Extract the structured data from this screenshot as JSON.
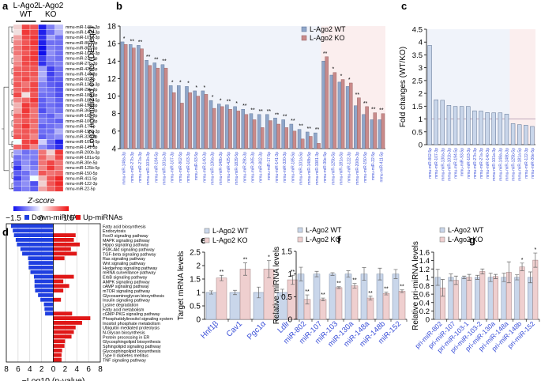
{
  "panels": {
    "a": "a",
    "b": "b",
    "c": "c",
    "d": "d",
    "e": "e",
    "f": "f",
    "g": "g"
  },
  "colors": {
    "wt_bar_b": "#8fa6c9",
    "ko_bar_b": "#c98a8a",
    "wt_bar_light": "#c9d6ea",
    "ko_bar_light": "#efcfcf",
    "down_blue": "#1f3fe0",
    "up_red": "#e01818",
    "label_blue": "#3a4fd8",
    "bg_blue": "#f0f3fa",
    "bg_red": "#fbeeee"
  },
  "chart_data": [
    {
      "id": "a",
      "type": "heatmap",
      "group_labels": [
        "L-Ago2\nWT",
        "L-Ago2\nKO"
      ],
      "group_label_lines": [
        [
          "L-Ago2",
          "WT"
        ],
        [
          "L-Ago2",
          "KO"
        ]
      ],
      "rows": [
        "mmu-miR-148a-3p",
        "mmu-miR-148b-3p",
        "mmu-miR-101a-3p",
        "mmu-miR-802-3p",
        "mmu-miR-802-5p",
        "mmu-miR-101b-3p",
        "mmu-miR-27a-3p",
        "mmu-miR-27b-3p",
        "mmu-miR-425-5p",
        "mmu-miR-140-3p",
        "mmu-miR-93-5p",
        "mmu-miR-130a-3p",
        "mmu-miR-29b-3p",
        "mmu-miR-185-5p",
        "mmu-miR-1839-5p",
        "mmu-miR-194-5p",
        "mmu-miR-365-3p",
        "mmu-miR-103-3p",
        "mmu-miR-107-3p",
        "mmu-miR-17-5p",
        "mmu-miR-1981-3p",
        "mmu-miR-320-3p",
        "mmu-miR-101a-5p",
        "mmu-miR-141-3p",
        "mmu-miR-200b-3p",
        "mmu-miR-181a-5p",
        "mmu-miR-30e-5p",
        "mmu-miR-125b-5p",
        "mmu-miR-150-5p",
        "mmu-miR-411-5p",
        "mmu-miR-122-3p",
        "mmu-miR-22-5p"
      ],
      "values": [
        [
          0.3,
          1.2,
          1.1,
          -1.4,
          -0.8,
          -0.4
        ],
        [
          0.2,
          1.3,
          1.2,
          -1.4,
          -0.9,
          -0.5
        ],
        [
          0.6,
          1.2,
          1.3,
          -1.3,
          -0.6,
          -0.9
        ],
        [
          0.8,
          1.1,
          1.3,
          -1.4,
          -0.9,
          -0.9
        ],
        [
          0.9,
          1.2,
          1.2,
          -1.5,
          -0.8,
          -0.9
        ],
        [
          0.9,
          1.1,
          1.3,
          -1.5,
          -0.7,
          -0.9
        ],
        [
          0.7,
          1.2,
          1.3,
          -1.2,
          -0.8,
          -0.9
        ],
        [
          0.8,
          1.2,
          1.2,
          -1.3,
          -0.9,
          -0.8
        ],
        [
          1.0,
          1.1,
          1.1,
          -0.6,
          -1.2,
          -0.9
        ],
        [
          1.1,
          1.1,
          1.1,
          -0.5,
          -1.2,
          -0.9
        ],
        [
          1.0,
          1.2,
          1.0,
          -0.6,
          -1.1,
          -1.0
        ],
        [
          1.1,
          0.9,
          1.2,
          -0.8,
          -1.0,
          -1.1
        ],
        [
          1.0,
          1.1,
          1.2,
          -0.8,
          -0.9,
          -1.1
        ],
        [
          1.2,
          0.2,
          1.1,
          -0.9,
          -0.9,
          -1.1
        ],
        [
          0.8,
          1.0,
          1.3,
          -1.0,
          -0.8,
          -1.0
        ],
        [
          0.5,
          1.3,
          1.1,
          -1.0,
          -0.9,
          -1.0
        ],
        [
          0.6,
          1.3,
          0.9,
          -1.1,
          -0.8,
          -0.9
        ],
        [
          1.0,
          1.2,
          0.9,
          -0.9,
          -1.0,
          -0.7
        ],
        [
          0.9,
          1.1,
          1.0,
          -0.8,
          -0.9,
          -1.0
        ],
        [
          1.0,
          1.3,
          0.9,
          -1.0,
          -0.9,
          -0.8
        ],
        [
          1.0,
          1.1,
          1.0,
          -0.9,
          -0.9,
          -0.5
        ],
        [
          1.1,
          1.1,
          0.8,
          -1.0,
          -0.8,
          -0.7
        ],
        [
          0.0,
          1.2,
          1.3,
          -0.3,
          -0.9,
          -1.4
        ],
        [
          1.0,
          1.2,
          0.8,
          -0.7,
          -1.0,
          -1.3
        ],
        [
          -0.6,
          -0.9,
          -0.8,
          0.9,
          0.3,
          1.3
        ],
        [
          -0.9,
          -0.8,
          -0.8,
          1.0,
          0.6,
          1.2
        ],
        [
          -1.0,
          -0.7,
          -0.9,
          0.9,
          1.2,
          0.9
        ],
        [
          -1.3,
          -0.6,
          -0.8,
          0.8,
          1.3,
          0.9
        ],
        [
          -1.0,
          -0.9,
          -0.6,
          1.1,
          0.9,
          1.0
        ],
        [
          -1.2,
          -0.8,
          0.0,
          0.5,
          1.1,
          1.4
        ],
        [
          -0.9,
          -0.7,
          -1.1,
          0.3,
          1.1,
          1.4
        ],
        [
          -1.0,
          -0.8,
          -1.0,
          0.6,
          1.0,
          1.3
        ]
      ],
      "legend_title": "Z-score",
      "legend_ticks": [
        "−1.5",
        "0",
        "1.5"
      ],
      "range": [
        -1.5,
        1.5
      ]
    },
    {
      "id": "b",
      "type": "bar",
      "ylabel": "Log2 normalized counts (DESeq2)",
      "ylim": [
        4,
        18
      ],
      "yticks": [
        4,
        6,
        8,
        10,
        12,
        14,
        16,
        18
      ],
      "legend": [
        "L-Ago2 WT",
        "L-Ago2 KO"
      ],
      "legend_position": "top-right",
      "categories": [
        "mmu-miR-148a-3p",
        "mmu-miR-27b-3p",
        "mmu-miR-27a-3p",
        "mmu-miR-101b-3p",
        "mmu-miR-194-5p",
        "mmu-miR-101a-3p",
        "mmu-miR-107-3p",
        "mmu-miR-802-5p",
        "mmu-miR-103-3p",
        "mmu-miR-93-5p",
        "mmu-miR-140-3p",
        "mmu-miR-130a-3p",
        "mmu-miR-148b-3p",
        "mmu-miR-425-5p",
        "mmu-miR-1839-5p",
        "mmu-miR-29b-3p",
        "mmu-miR-365-3p",
        "mmu-miR-802-3p",
        "mmu-miR-17-5p",
        "mmu-miR-141-3p",
        "mmu-miR-320-3p",
        "mmu-miR-185-5p",
        "mmu-miR-101a-5p",
        "mmu-miR-148b-5p",
        "mmu-miR-1981-3p",
        "mmu-miR-30e-5p",
        "mmu-miR-125b-5p",
        "mmu-miR-181a-5p",
        "mmu-miR-122-3p",
        "mmu-miR-200b-3p",
        "mmu-miR-150-5p",
        "mmu-miR-22-5p",
        "mmu-miR-411-5p"
      ],
      "series": [
        {
          "name": "L-Ago2 WT",
          "values": [
            16.2,
            15.9,
            15.8,
            14.1,
            13.8,
            13.6,
            11.2,
            11.2,
            11.1,
            10.6,
            10.6,
            9.5,
            9.1,
            9.0,
            8.8,
            8.5,
            8.0,
            7.9,
            7.9,
            7.5,
            7.3,
            6.8,
            6.2,
            5.9,
            5.8,
            14.0,
            12.4,
            11.6,
            11.1,
            8.9,
            7.9,
            7.3,
            7.3
          ]
        },
        {
          "name": "L-Ago2 KO",
          "values": [
            15.9,
            15.5,
            15.4,
            13.5,
            13.2,
            13.2,
            10.4,
            9.2,
            10.4,
            10.0,
            10.2,
            8.6,
            8.8,
            8.5,
            8.3,
            7.9,
            7.3,
            6.4,
            7.2,
            6.8,
            6.4,
            6.0,
            5.1,
            5.4,
            4.6,
            14.5,
            12.7,
            11.9,
            11.5,
            9.8,
            8.8,
            8.1,
            8.0
          ]
        }
      ],
      "significance": [
        "*",
        "**",
        "**",
        "**",
        "**",
        "**",
        "*",
        "*",
        "*",
        "*",
        "*",
        "*",
        "*",
        "**",
        "*",
        "**",
        "**",
        "**",
        "**",
        "**",
        "**",
        "**",
        "**",
        "**",
        "**",
        "**",
        "*",
        "*",
        "*",
        "**",
        "**",
        "**",
        "**"
      ],
      "up_region_start_index": 25
    },
    {
      "id": "c",
      "type": "bar",
      "ylabel": "Fold changes (WT/KO)",
      "ylim": [
        0,
        4.5
      ],
      "yticks": [
        "0",
        "0.5",
        "1",
        "1.5",
        "2",
        "2.5",
        "3",
        "3.5",
        "4",
        "4.5"
      ],
      "reference_line": 1,
      "categories": [
        "mmu-miR-802-5p",
        "mmu-miR-107-3p",
        "mmu-miR-130a-3p",
        "mmu-miR-101b-3p",
        "mmu-miR-194-5p",
        "mmu-miR-93-5p",
        "mmu-miR-103-3p",
        "mmu-miR-27b-3p",
        "mmu-miR-27a-3p",
        "mmu-miR-140-3p",
        "mmu-miR-101a-3p",
        "mmu-miR-148a-3p",
        "mmu-miR-148b-3p",
        "mmu-miR-125b-5p",
        "mmu-miR-181a-5p",
        "mmu-miR-122-3p",
        "mmu-miR-30e-5p"
      ],
      "values": [
        3.87,
        1.75,
        1.73,
        1.53,
        1.49,
        1.49,
        1.49,
        1.32,
        1.31,
        1.25,
        1.24,
        1.24,
        1.19,
        0.82,
        0.78,
        0.76,
        0.71
      ],
      "up_region_start_index": 13
    },
    {
      "id": "d",
      "type": "bar",
      "orientation": "horizontal",
      "xlabel": "−Log10 (p-value)",
      "xticks": [
        "8",
        "6",
        "4",
        "2",
        "0",
        "2",
        "4",
        "6",
        "8"
      ],
      "xlim": [
        -8,
        8
      ],
      "legend": [
        "Down-miRNAs",
        "Up-miRNAs"
      ],
      "legend_position": "top",
      "categories": [
        "Fatty acid biosynthesis",
        "Endocytosis",
        "FoxO signaling pathway",
        "MAPK signaling pathway",
        "Hippo signaling pathway",
        "PI3K-Akt signaling pathway",
        "TGF-beta signaling pathway",
        "Ras signaling pathway",
        "Wnt signaling pathway",
        "Hedgehog signaling pathway",
        "mRNA surveillance pathway",
        "ErbB signaling pathway",
        "AMPK signaling pathway",
        "cAMP signaling pathway",
        "mTOR signaling pathway",
        "Glycosaminoglycan biosynthesis",
        "Insulin signaling pathway",
        "Lysine degradation",
        "Fatty acid metabolism",
        "cGMP-PKG signaling pathway",
        "Phosphatidylinositol signaling system",
        "Inositol phosphate metabolism",
        "Ubiquitin mediated proteolysis",
        "N-Glycan biosynthesis",
        "Protein processing in ER",
        "Glycosphingolipid biosynthesis",
        "Sphingolipid signaling pathway",
        "Glycosphingolipid biosynthesis",
        "Type II diabetes mellitus",
        "TNF signaling pathway"
      ],
      "series": [
        {
          "name": "Down-miRNAs",
          "values": [
            7.2,
            6.9,
            6.7,
            6.4,
            6.2,
            5.6,
            5.3,
            4.3,
            4.2,
            4.2,
            3.9,
            3.3,
            3.2,
            3.2,
            3.1,
            2.6,
            2.2,
            1.6,
            1.5,
            1.4,
            0,
            0,
            0,
            0,
            0,
            0,
            0,
            0,
            0,
            0
          ]
        },
        {
          "name": "Up-miRNAs",
          "values": [
            0,
            0,
            3.8,
            3.5,
            4.5,
            3.0,
            4.0,
            1.9,
            0,
            0,
            0,
            3.5,
            1.7,
            2.7,
            1.7,
            0,
            1.3,
            0,
            0,
            3.2,
            6.3,
            4.9,
            3.8,
            3.5,
            3.1,
            2.0,
            1.9,
            1.5,
            1.4,
            1.4
          ]
        }
      ]
    },
    {
      "id": "e",
      "type": "bar",
      "ylabel": "Target mRNA levels",
      "ylim": [
        0,
        2.5
      ],
      "yticks": [
        "0",
        "0.5",
        "1",
        "1.5",
        "2",
        "2.5"
      ],
      "legend": [
        "L-Ago2 WT",
        "L-Ago2 KO"
      ],
      "categories": [
        "Hnf1β",
        "Cav1",
        "Pgc1α",
        "Ldlr"
      ],
      "series": [
        {
          "name": "L-Ago2 WT",
          "values": [
            1.0,
            1.0,
            1.0,
            1.0
          ],
          "errors": [
            0.06,
            0.08,
            0.2,
            0.12
          ]
        },
        {
          "name": "L-Ago2 KO",
          "values": [
            1.54,
            1.87,
            1.87,
            1.47
          ],
          "errors": [
            0.1,
            0.23,
            0.32,
            0.17
          ]
        }
      ],
      "significance": [
        "**",
        "**",
        "*",
        "**"
      ]
    },
    {
      "id": "f",
      "type": "bar",
      "ylabel": "Relative miRNA levels",
      "ylim": [
        0,
        1.5
      ],
      "yticks": [
        "0",
        "0.5",
        "1",
        "1.5"
      ],
      "legend": [
        "L-Ago2 WT",
        "L-Ago2 KO"
      ],
      "categories": [
        "miR-802",
        "miR-107",
        "miR-103",
        "miR-130a",
        "miR-148a",
        "miR-148b",
        "miR-152"
      ],
      "series": [
        {
          "name": "L-Ago2 WT",
          "values": [
            1.0,
            1.0,
            1.0,
            1.0,
            1.0,
            1.0,
            1.0
          ],
          "errors": [
            0.15,
            0.06,
            0.03,
            0.07,
            0.14,
            0.13,
            0.1
          ]
        },
        {
          "name": "L-Ago2 KO",
          "values": [
            0.44,
            0.44,
            0.7,
            0.74,
            0.47,
            0.57,
            0.62
          ],
          "errors": [
            0.1,
            0.03,
            0.02,
            0.05,
            0.04,
            0.03,
            0.03
          ]
        }
      ],
      "significance": [
        "**",
        "**",
        "**",
        "**",
        "**",
        "**",
        "**"
      ]
    },
    {
      "id": "g",
      "type": "bar",
      "ylabel": "Relative pri-miRNA levels",
      "ylim": [
        0,
        1.6
      ],
      "yticks": [
        "0",
        "0.2",
        "0.4",
        "0.6",
        "0.8",
        "1",
        "1.2",
        "1.4",
        "1.6"
      ],
      "legend": [
        "L-Ago2 WT",
        "L-Ago2 KO"
      ],
      "categories": [
        "pri-miR-802",
        "pri-miR-107",
        "pri-miR-103-1",
        "pri-miR-103-2",
        "pri-miR-130a",
        "pri-miR-148a",
        "pri-miR-148b",
        "pri-miR-152"
      ],
      "series": [
        {
          "name": "L-Ago2 WT",
          "values": [
            1.0,
            1.0,
            1.0,
            1.0,
            1.0,
            1.0,
            1.0,
            1.0
          ],
          "errors": [
            0.19,
            0.08,
            0.03,
            0.05,
            0.1,
            0.1,
            0.06,
            0.13
          ]
        },
        {
          "name": "L-Ago2 KO",
          "values": [
            0.75,
            0.93,
            1.0,
            1.14,
            1.02,
            1.12,
            1.25,
            1.41
          ],
          "errors": [
            0.2,
            0.1,
            0.07,
            0.06,
            0.05,
            0.25,
            0.09,
            0.17
          ]
        }
      ],
      "significance": [
        "",
        "",
        "",
        "",
        "",
        "",
        "*",
        "*"
      ]
    }
  ]
}
